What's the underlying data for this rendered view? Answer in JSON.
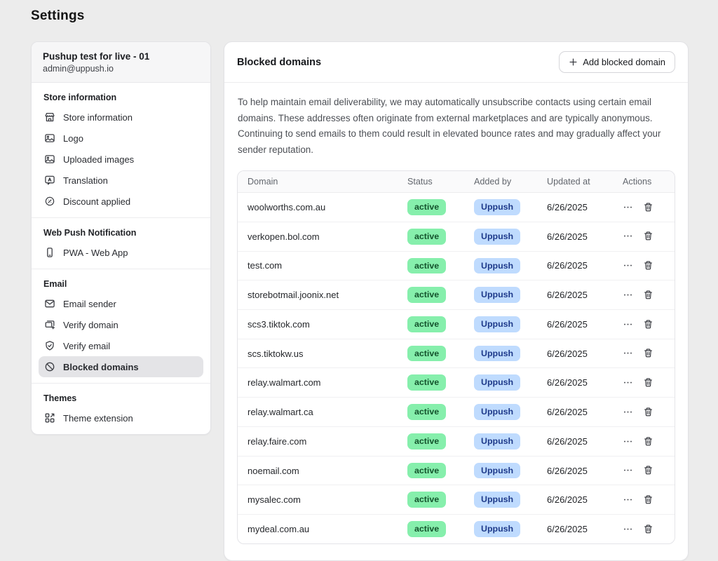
{
  "page": {
    "title": "Settings"
  },
  "sidebar": {
    "store_name": "Pushup test for live - 01",
    "store_email": "admin@uppush.io",
    "sections": [
      {
        "heading": "Store information",
        "items": [
          {
            "label": "Store information",
            "icon": "storefront"
          },
          {
            "label": "Logo",
            "icon": "image"
          },
          {
            "label": "Uploaded images",
            "icon": "image"
          },
          {
            "label": "Translation",
            "icon": "translate"
          },
          {
            "label": "Discount applied",
            "icon": "discount"
          }
        ]
      },
      {
        "heading": "Web Push Notification",
        "items": [
          {
            "label": "PWA - Web App",
            "icon": "mobile"
          }
        ]
      },
      {
        "heading": "Email",
        "items": [
          {
            "label": "Email sender",
            "icon": "envelope"
          },
          {
            "label": "Verify domain",
            "icon": "verify-domain"
          },
          {
            "label": "Verify email",
            "icon": "shield-check"
          },
          {
            "label": "Blocked domains",
            "icon": "blocked",
            "active": true
          }
        ]
      },
      {
        "heading": "Themes",
        "items": [
          {
            "label": "Theme extension",
            "icon": "theme-extension"
          }
        ]
      }
    ]
  },
  "main": {
    "title": "Blocked domains",
    "add_button_label": "Add blocked domain",
    "add_button_icon": "plus-icon",
    "description": "To help maintain email deliverability, we may automatically unsubscribe contacts using certain email domains. These addresses often originate from external marketplaces and are typically anonymous. Continuing to send emails to them could result in elevated bounce rates and may gradually affect your sender reputation.",
    "table": {
      "columns": [
        "Domain",
        "Status",
        "Added by",
        "Updated at",
        "Actions"
      ],
      "action_icons": [
        "more-dots-icon",
        "trash-icon"
      ],
      "rows": [
        {
          "domain": "woolworths.com.au",
          "status": "active",
          "added_by": "Uppush",
          "updated_at": "6/26/2025"
        },
        {
          "domain": "verkopen.bol.com",
          "status": "active",
          "added_by": "Uppush",
          "updated_at": "6/26/2025"
        },
        {
          "domain": "test.com",
          "status": "active",
          "added_by": "Uppush",
          "updated_at": "6/26/2025"
        },
        {
          "domain": "storebotmail.joonix.net",
          "status": "active",
          "added_by": "Uppush",
          "updated_at": "6/26/2025"
        },
        {
          "domain": "scs3.tiktok.com",
          "status": "active",
          "added_by": "Uppush",
          "updated_at": "6/26/2025"
        },
        {
          "domain": "scs.tiktokw.us",
          "status": "active",
          "added_by": "Uppush",
          "updated_at": "6/26/2025"
        },
        {
          "domain": "relay.walmart.com",
          "status": "active",
          "added_by": "Uppush",
          "updated_at": "6/26/2025"
        },
        {
          "domain": "relay.walmart.ca",
          "status": "active",
          "added_by": "Uppush",
          "updated_at": "6/26/2025"
        },
        {
          "domain": "relay.faire.com",
          "status": "active",
          "added_by": "Uppush",
          "updated_at": "6/26/2025"
        },
        {
          "domain": "noemail.com",
          "status": "active",
          "added_by": "Uppush",
          "updated_at": "6/26/2025"
        },
        {
          "domain": "mysalec.com",
          "status": "active",
          "added_by": "Uppush",
          "updated_at": "6/26/2025"
        },
        {
          "domain": "mydeal.com.au",
          "status": "active",
          "added_by": "Uppush",
          "updated_at": "6/26/2025"
        }
      ]
    },
    "colors": {
      "status_active_bg": "#86efac",
      "status_active_text": "#14532d",
      "added_by_bg": "#bfdbfe",
      "added_by_text": "#1e3a8a"
    }
  }
}
